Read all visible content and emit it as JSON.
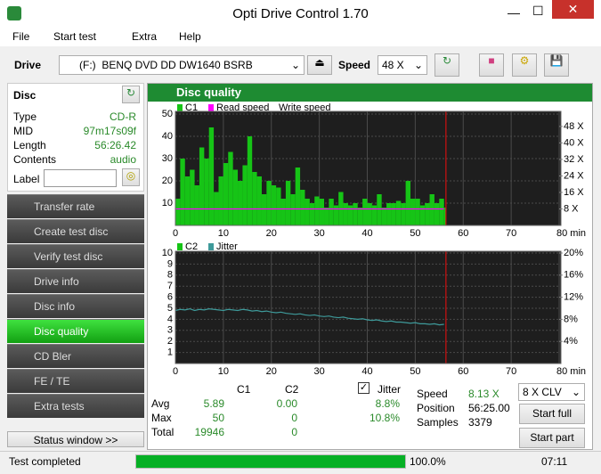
{
  "window": {
    "title": "Opti Drive Control 1.70"
  },
  "menu": [
    "File",
    "Start test",
    "Extra",
    "Help"
  ],
  "toolbar": {
    "drive_label": "Drive",
    "drive": "(F:)  BENQ DVD DD DW1640 BSRB",
    "speed_label": "Speed",
    "speed": "48 X"
  },
  "disc": {
    "header": "Disc",
    "fields": [
      [
        "Type",
        "CD-R"
      ],
      [
        "MID",
        "97m17s09f"
      ],
      [
        "Length",
        "56:26.42"
      ],
      [
        "Contents",
        "audio"
      ]
    ],
    "label": "Label"
  },
  "nav": [
    "Transfer rate",
    "Create test disc",
    "Verify test disc",
    "Drive info",
    "Disc info",
    "Disc quality",
    "CD Bler",
    "FE / TE",
    "Extra tests"
  ],
  "nav_active": 5,
  "status_window": "Status window >>",
  "panel_title": "Disc quality",
  "chart_data": [
    {
      "type": "bar",
      "position_marker": 56.4,
      "grid": true,
      "x": [
        0,
        1,
        2,
        3,
        4,
        5,
        6,
        7,
        8,
        9,
        10,
        11,
        12,
        13,
        14,
        15,
        16,
        17,
        18,
        19,
        20,
        21,
        22,
        23,
        24,
        25,
        26,
        27,
        28,
        29,
        30,
        31,
        32,
        33,
        34,
        35,
        36,
        37,
        38,
        39,
        40,
        41,
        42,
        43,
        44,
        45,
        46,
        47,
        48,
        49,
        50,
        51,
        52,
        53,
        54,
        55,
        56
      ],
      "xlim": [
        0,
        80
      ],
      "xticks": [
        0,
        10,
        20,
        30,
        40,
        50,
        60,
        70,
        {
          "value": 80,
          "label": "80 min"
        }
      ],
      "ylim": [
        0,
        50
      ],
      "yticks": [
        10,
        20,
        30,
        40,
        50
      ],
      "y2lim": [
        0,
        54
      ],
      "y2ticks": [
        {
          "value": 8,
          "label": "8 X"
        },
        {
          "value": 16,
          "label": "16 X"
        },
        {
          "value": 24,
          "label": "24 X"
        },
        {
          "value": 32,
          "label": "32 X"
        },
        {
          "value": 40,
          "label": "40 X"
        },
        {
          "value": 48,
          "label": "48 X"
        }
      ],
      "series": [
        {
          "name": "C1",
          "color": "#16c416",
          "values": [
            12,
            30,
            22,
            25,
            18,
            35,
            30,
            44,
            15,
            22,
            28,
            33,
            25,
            20,
            27,
            40,
            24,
            22,
            14,
            20,
            18,
            17,
            12,
            20,
            14,
            26,
            16,
            12,
            10,
            13,
            12,
            8,
            12,
            9,
            15,
            10,
            9,
            10,
            8,
            12,
            10,
            9,
            14,
            8,
            10,
            10,
            11,
            10,
            20,
            12,
            12,
            9,
            10,
            14,
            10,
            12,
            8
          ]
        },
        {
          "name": "Read speed",
          "color": "#ff00ff",
          "axis": "y2",
          "values": [
            8,
            8,
            8,
            8,
            8,
            8,
            8,
            8,
            8,
            8,
            8,
            8,
            8,
            8,
            8,
            8,
            8,
            8,
            8,
            8,
            8,
            8,
            8,
            8,
            8,
            8,
            8,
            8,
            8,
            8,
            8,
            8,
            8,
            8,
            8,
            8,
            8,
            8,
            8,
            8,
            8,
            8,
            8,
            8,
            8,
            8,
            8,
            8,
            8,
            8,
            8,
            8,
            8,
            8,
            8,
            8,
            8
          ]
        },
        {
          "name": "Write speed",
          "axis": "y2",
          "values": [
            null,
            null,
            null,
            null,
            null,
            null,
            null,
            null,
            null,
            null,
            null,
            null,
            null,
            null,
            null,
            null,
            null,
            null,
            null,
            null,
            null,
            null,
            null,
            null,
            null,
            null,
            null,
            null,
            null,
            null,
            null,
            null,
            null,
            null,
            null,
            null,
            null,
            null,
            null,
            null,
            null,
            null,
            null,
            null,
            null,
            null,
            null,
            null,
            null,
            null,
            null,
            null,
            null,
            null,
            null,
            null,
            null
          ]
        }
      ]
    },
    {
      "type": "bar",
      "position_marker": 56.4,
      "grid": true,
      "x": [
        0,
        1,
        2,
        3,
        4,
        5,
        6,
        7,
        8,
        9,
        10,
        11,
        12,
        13,
        14,
        15,
        16,
        17,
        18,
        19,
        20,
        21,
        22,
        23,
        24,
        25,
        26,
        27,
        28,
        29,
        30,
        31,
        32,
        33,
        34,
        35,
        36,
        37,
        38,
        39,
        40,
        41,
        42,
        43,
        44,
        45,
        46,
        47,
        48,
        49,
        50,
        51,
        52,
        53,
        54,
        55,
        56
      ],
      "xlim": [
        0,
        80
      ],
      "xticks": [
        0,
        10,
        20,
        30,
        40,
        50,
        60,
        70,
        {
          "value": 80,
          "label": "80 min"
        }
      ],
      "ylim": [
        0,
        10
      ],
      "yticks": [
        1,
        2,
        3,
        4,
        5,
        6,
        7,
        8,
        9,
        10
      ],
      "y2lim": [
        0,
        20
      ],
      "y2ticks": [
        {
          "value": 4,
          "label": "4%"
        },
        {
          "value": 8,
          "label": "8%"
        },
        {
          "value": 12,
          "label": "12%"
        },
        {
          "value": 16,
          "label": "16%"
        },
        {
          "value": 20,
          "label": "20%"
        }
      ],
      "series": [
        {
          "name": "C2",
          "color": "#16c416",
          "values": [
            0,
            0,
            0,
            0,
            0,
            0,
            0,
            0,
            0,
            0,
            0,
            0,
            0,
            0,
            0,
            0,
            0,
            0,
            0,
            0,
            0,
            0,
            0,
            0,
            0,
            0,
            0,
            0,
            0,
            0,
            0,
            0,
            0,
            0,
            0,
            0,
            0,
            0,
            0,
            0,
            0,
            0,
            0,
            0,
            0,
            0,
            0,
            0,
            0,
            0,
            0,
            0,
            0,
            0,
            0,
            0,
            0
          ]
        },
        {
          "name": "Jitter",
          "color": "#3e9a9a",
          "axis": "y2",
          "values": [
            9.6,
            9.8,
            9.7,
            9.9,
            9.6,
            9.8,
            9.7,
            9.9,
            9.8,
            9.7,
            9.6,
            9.8,
            9.7,
            9.6,
            9.8,
            9.7,
            9.5,
            9.6,
            9.4,
            9.5,
            9.3,
            9.2,
            9.3,
            9.1,
            9.0,
            8.9,
            9.0,
            8.8,
            8.7,
            8.8,
            8.6,
            8.5,
            8.6,
            8.4,
            8.3,
            8.4,
            8.2,
            8.1,
            8.0,
            8.1,
            7.9,
            7.8,
            7.9,
            7.7,
            7.6,
            7.7,
            7.5,
            7.5,
            7.4,
            7.3,
            7.4,
            7.2,
            7.2,
            7.1,
            7.2,
            7.0,
            7.1
          ]
        }
      ]
    }
  ],
  "stats": {
    "headers": [
      "C1",
      "C2"
    ],
    "jitter_label": "Jitter",
    "jitter_checked": true,
    "rows": [
      [
        "Avg",
        "5.89",
        "0.00",
        "8.8%"
      ],
      [
        "Max",
        "50",
        "0",
        "10.8%"
      ],
      [
        "Total",
        "19946",
        "0"
      ]
    ]
  },
  "info": [
    [
      "Speed",
      "8.13 X"
    ],
    [
      "Position",
      "56:25.00"
    ],
    [
      "Samples",
      "3379"
    ]
  ],
  "test_speed": "8 X CLV",
  "buttons": [
    "Start full",
    "Start part"
  ],
  "status": {
    "text": "Test completed",
    "progress": {
      "value": 100,
      "label": "100.0%"
    },
    "time": "07:11"
  }
}
